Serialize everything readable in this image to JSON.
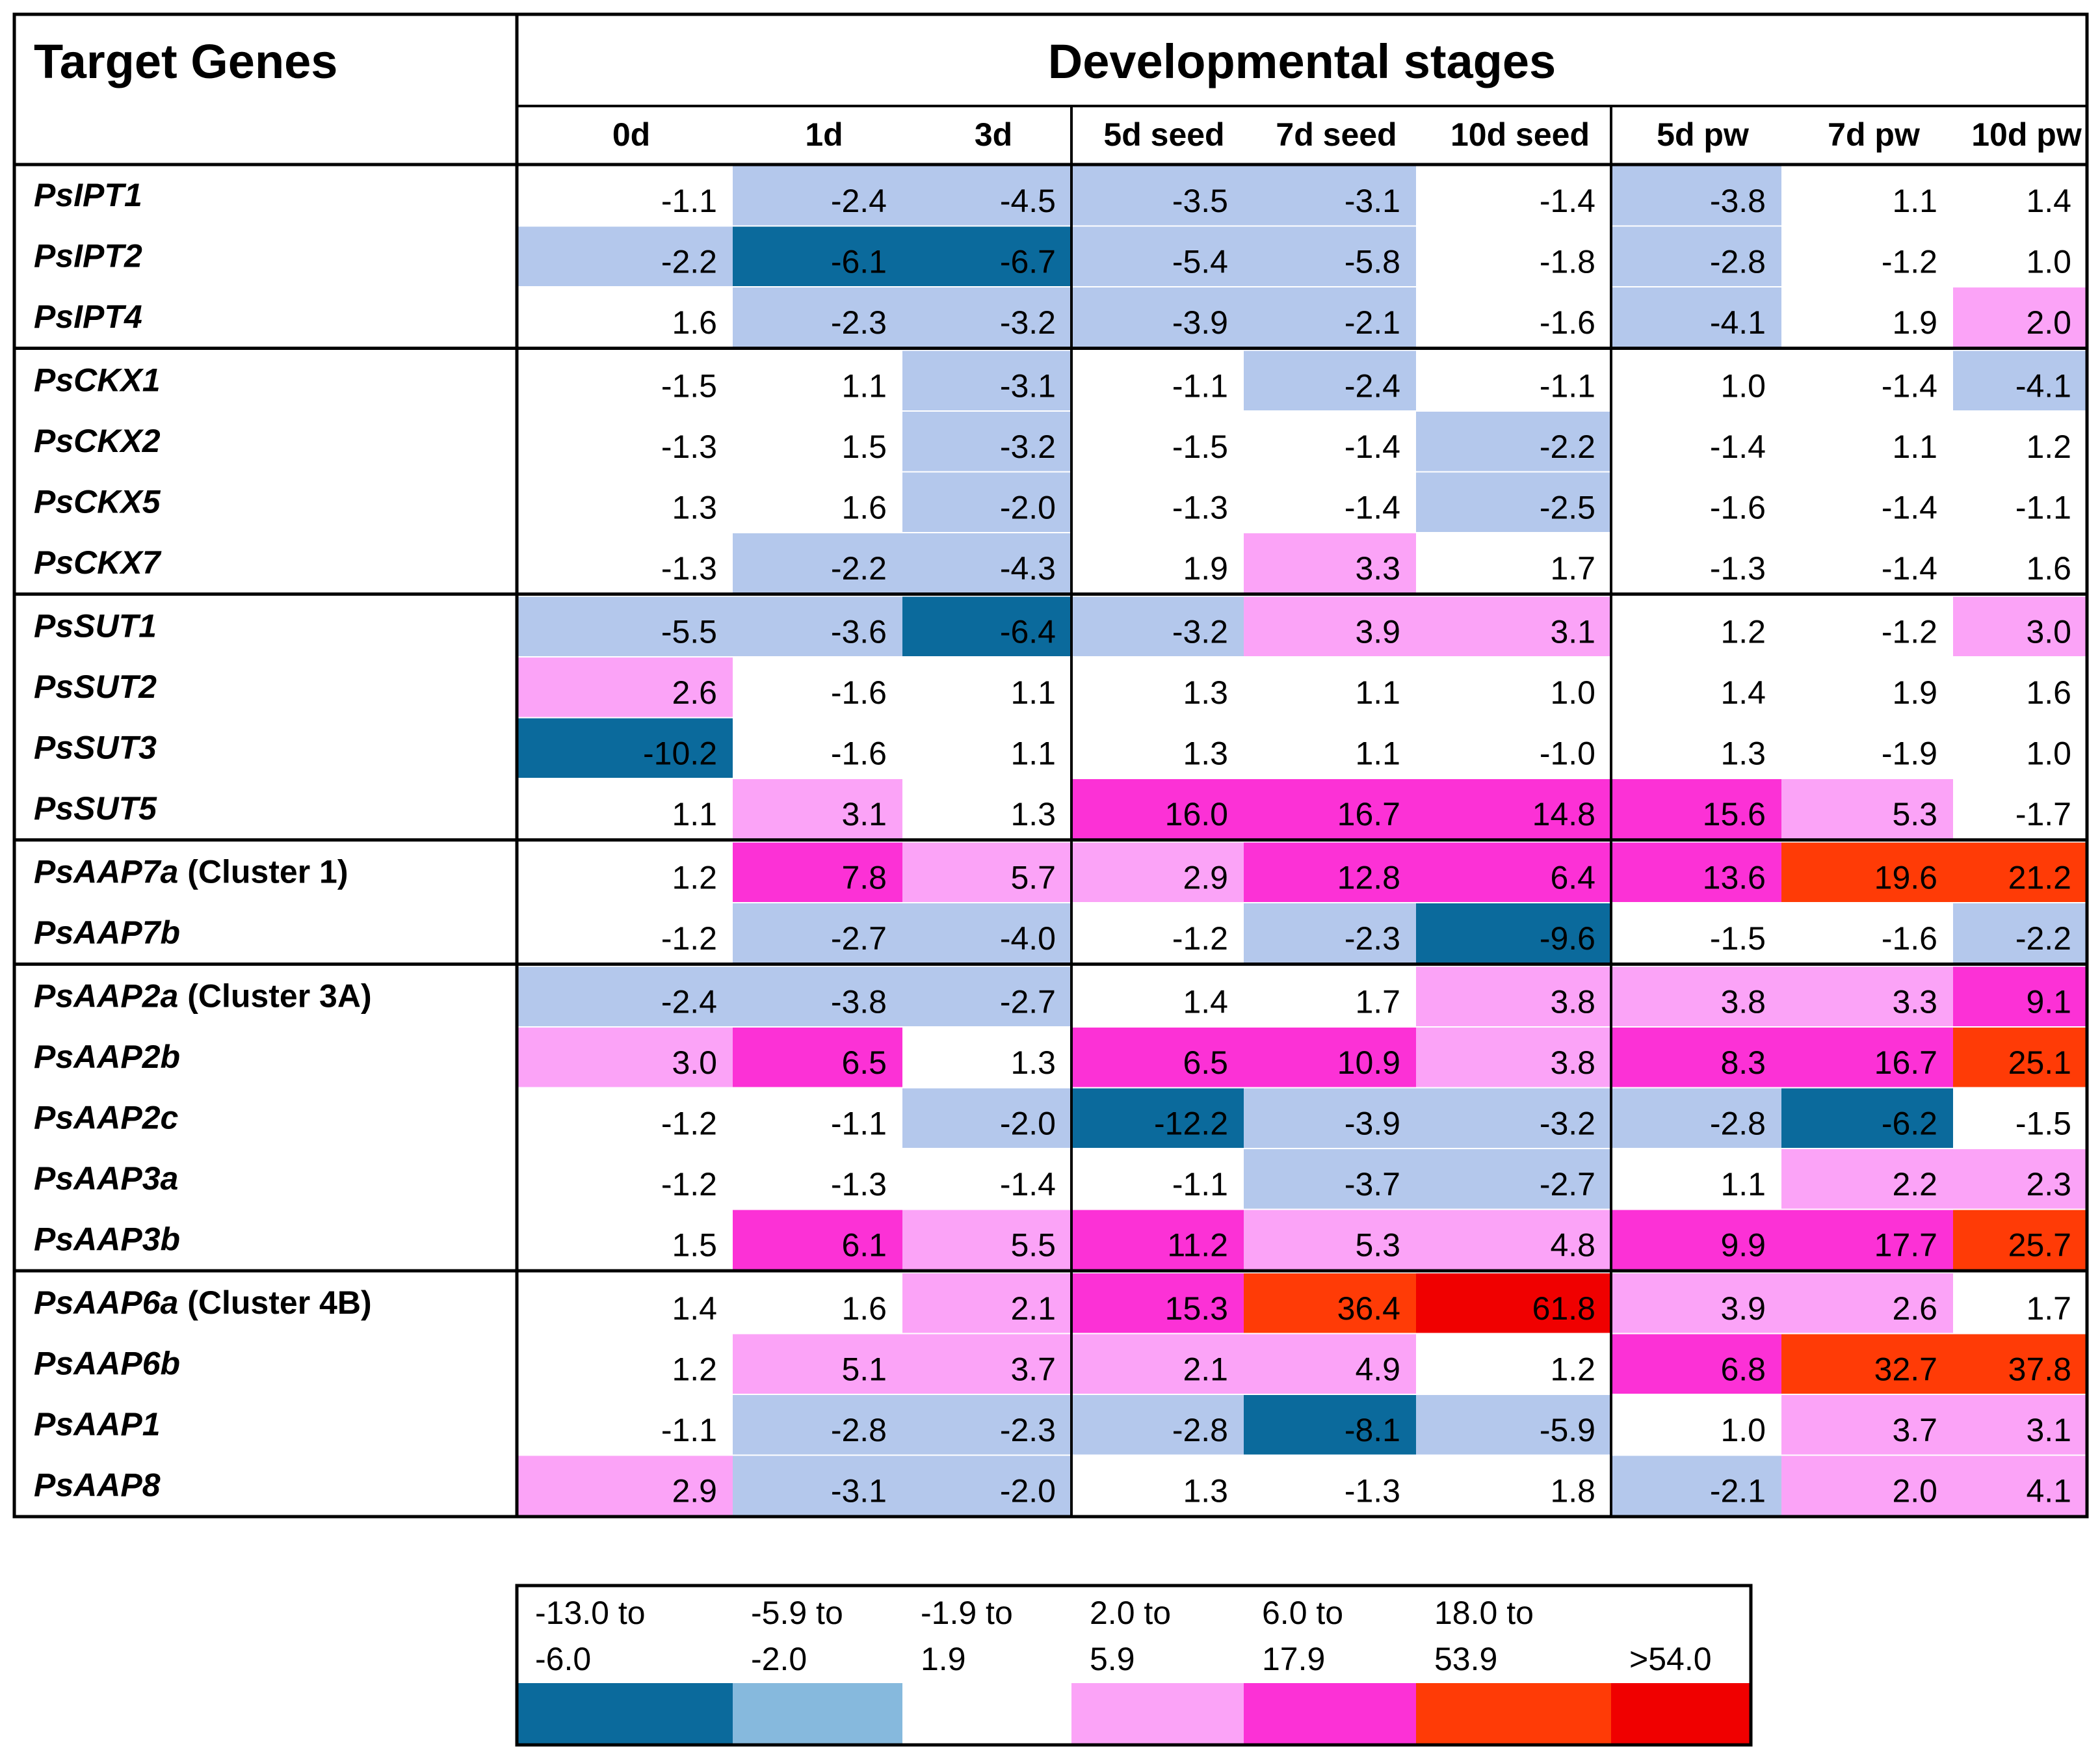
{
  "chart_data": {
    "type": "heatmap",
    "header": {
      "gene_column": "Target Genes",
      "stage_group": "Developmental stages"
    },
    "columns": [
      "0d",
      "1d",
      "3d",
      "5d seed",
      "7d seed",
      "10d seed",
      "5d pw",
      "7d pw",
      "10d pw"
    ],
    "groups": [
      {
        "rows": [
          {
            "gene": "PsIPT1",
            "suffix": "",
            "values": [
              -1.1,
              -2.4,
              -4.5,
              -3.5,
              -3.1,
              -1.4,
              -3.8,
              1.1,
              1.4
            ]
          },
          {
            "gene": "PsIPT2",
            "suffix": "",
            "values": [
              -2.2,
              -6.1,
              -6.7,
              -5.4,
              -5.8,
              -1.8,
              -2.8,
              -1.2,
              1.0
            ]
          },
          {
            "gene": "PsIPT4",
            "suffix": "",
            "values": [
              1.6,
              -2.3,
              -3.2,
              -3.9,
              -2.1,
              -1.6,
              -4.1,
              1.9,
              2.0
            ]
          }
        ]
      },
      {
        "rows": [
          {
            "gene": "PsCKX1",
            "suffix": "",
            "values": [
              -1.5,
              1.1,
              -3.1,
              -1.1,
              -2.4,
              -1.1,
              1.0,
              -1.4,
              -4.1
            ]
          },
          {
            "gene": "PsCKX2",
            "suffix": "",
            "values": [
              -1.3,
              1.5,
              -3.2,
              -1.5,
              -1.4,
              -2.2,
              -1.4,
              1.1,
              1.2
            ]
          },
          {
            "gene": "PsCKX5",
            "suffix": "",
            "values": [
              1.3,
              1.6,
              -2.0,
              -1.3,
              -1.4,
              -2.5,
              -1.6,
              -1.4,
              -1.1
            ]
          },
          {
            "gene": "PsCKX7",
            "suffix": "",
            "values": [
              -1.3,
              -2.2,
              -4.3,
              1.9,
              3.3,
              1.7,
              -1.3,
              -1.4,
              1.6
            ]
          }
        ]
      },
      {
        "rows": [
          {
            "gene": "PsSUT1",
            "suffix": "",
            "values": [
              -5.5,
              -3.6,
              -6.4,
              -3.2,
              3.9,
              3.1,
              1.2,
              -1.2,
              3.0
            ]
          },
          {
            "gene": "PsSUT2",
            "suffix": "",
            "values": [
              2.6,
              -1.6,
              1.1,
              1.3,
              1.1,
              1.0,
              1.4,
              1.9,
              1.6
            ]
          },
          {
            "gene": "PsSUT3",
            "suffix": "",
            "values": [
              -10.2,
              -1.6,
              1.1,
              1.3,
              1.1,
              -1.0,
              1.3,
              -1.9,
              1.0
            ]
          },
          {
            "gene": "PsSUT5",
            "suffix": "",
            "values": [
              1.1,
              3.1,
              1.3,
              16.0,
              16.7,
              14.8,
              15.6,
              5.3,
              -1.7
            ]
          }
        ]
      },
      {
        "rows": [
          {
            "gene": "PsAAP7a",
            "suffix": " (Cluster 1)",
            "values": [
              1.2,
              7.8,
              5.7,
              2.9,
              12.8,
              6.4,
              13.6,
              19.6,
              21.2
            ]
          },
          {
            "gene": "PsAAP7b",
            "suffix": "",
            "values": [
              -1.2,
              -2.7,
              -4.0,
              -1.2,
              -2.3,
              -9.6,
              -1.5,
              -1.6,
              -2.2
            ]
          }
        ]
      },
      {
        "rows": [
          {
            "gene": "PsAAP2a",
            "suffix": " (Cluster 3A)",
            "values": [
              -2.4,
              -3.8,
              -2.7,
              1.4,
              1.7,
              3.8,
              3.8,
              3.3,
              9.1
            ]
          },
          {
            "gene": "PsAAP2b",
            "suffix": "",
            "values": [
              3.0,
              6.5,
              1.3,
              6.5,
              10.9,
              3.8,
              8.3,
              16.7,
              25.1
            ]
          },
          {
            "gene": "PsAAP2c",
            "suffix": "",
            "values": [
              -1.2,
              -1.1,
              -2.0,
              -12.2,
              -3.9,
              -3.2,
              -2.8,
              -6.2,
              -1.5
            ]
          },
          {
            "gene": "PsAAP3a",
            "suffix": "",
            "values": [
              -1.2,
              -1.3,
              -1.4,
              -1.1,
              -3.7,
              -2.7,
              1.1,
              2.2,
              2.3
            ]
          },
          {
            "gene": "PsAAP3b",
            "suffix": "",
            "values": [
              1.5,
              6.1,
              5.5,
              11.2,
              5.3,
              4.8,
              9.9,
              17.7,
              25.7
            ]
          }
        ]
      },
      {
        "rows": [
          {
            "gene": "PsAAP6a",
            "suffix": "  (Cluster 4B)",
            "values": [
              1.4,
              1.6,
              2.1,
              15.3,
              36.4,
              61.8,
              3.9,
              2.6,
              1.7
            ]
          },
          {
            "gene": "PsAAP6b",
            "suffix": "",
            "values": [
              1.2,
              5.1,
              3.7,
              2.1,
              4.9,
              1.2,
              6.8,
              32.7,
              37.8
            ]
          },
          {
            "gene": "PsAAP1",
            "suffix": "",
            "values": [
              -1.1,
              -2.8,
              -2.3,
              -2.8,
              -8.1,
              -5.9,
              1.0,
              3.7,
              3.1
            ]
          },
          {
            "gene": "PsAAP8",
            "suffix": "",
            "values": [
              2.9,
              -3.1,
              -2.0,
              1.3,
              -1.3,
              1.8,
              -2.1,
              2.0,
              4.1
            ]
          }
        ]
      }
    ],
    "cell_colors": {
      "dark-blue": "#0b6a9c",
      "light-blue": "#b4c8ec",
      "white": "#ffffff",
      "light-pink": "#fba3f7",
      "magenta": "#fc31d6",
      "orange-red": "#ff3b06",
      "red": "#f00000"
    },
    "legend": [
      {
        "line1": "-13.0 to",
        "line2": "-6.0",
        "color": "#0b6a9c"
      },
      {
        "line1": "-5.9 to",
        "line2": "-2.0",
        "color": "#86b9dd"
      },
      {
        "line1": "-1.9 to",
        "line2": "1.9",
        "color": "#ffffff"
      },
      {
        "line1": "2.0 to",
        "line2": "5.9",
        "color": "#fba3f7"
      },
      {
        "line1": "6.0 to",
        "line2": "17.9",
        "color": "#fc31d6"
      },
      {
        "line1": "18.0 to",
        "line2": "53.9",
        "color": "#ff3b06"
      },
      {
        "line1": "",
        "line2": ">54.0",
        "color": "#f00000"
      }
    ]
  }
}
